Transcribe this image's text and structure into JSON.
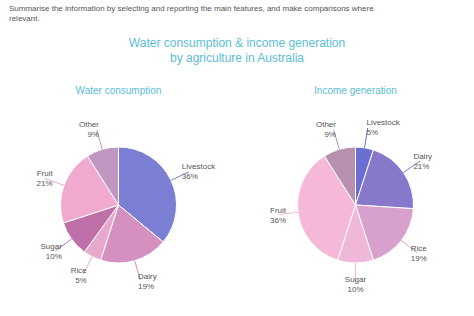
{
  "title": "Water consumption & income generation\nby agriculture in Australia",
  "subtitle": "Summarise the information by selecting and reporting the main features, and make comparisons where\nrelevant.",
  "chart_data": [
    {
      "type": "pie",
      "title": "Water consumption",
      "categories": [
        "Livestock",
        "Dairy",
        "Rice",
        "Sugar",
        "Fruit",
        "Other"
      ],
      "values": [
        36,
        19,
        5,
        10,
        21,
        9
      ],
      "value_labels": [
        "36%",
        "19%",
        "5%",
        "10%",
        "21%",
        "9%"
      ],
      "colors": [
        "#7b7fd4",
        "#d491c0",
        "#e8a8cc",
        "#c070a8",
        "#f0aad0",
        "#c097c0"
      ],
      "data_labels": true
    },
    {
      "type": "pie",
      "title": "Income generation",
      "categories": [
        "Livestock",
        "Dairy",
        "Rice",
        "Sugar",
        "Fruit",
        "Other"
      ],
      "values": [
        5,
        21,
        19,
        10,
        36,
        9
      ],
      "value_labels": [
        "5%",
        "21%",
        "19%",
        "10%",
        "36%",
        "9%"
      ],
      "colors": [
        "#6b6fd4",
        "#8878cc",
        "#d8a0cc",
        "#f0b8d8",
        "#f5b8d8",
        "#b890b0"
      ],
      "data_labels": true
    }
  ]
}
